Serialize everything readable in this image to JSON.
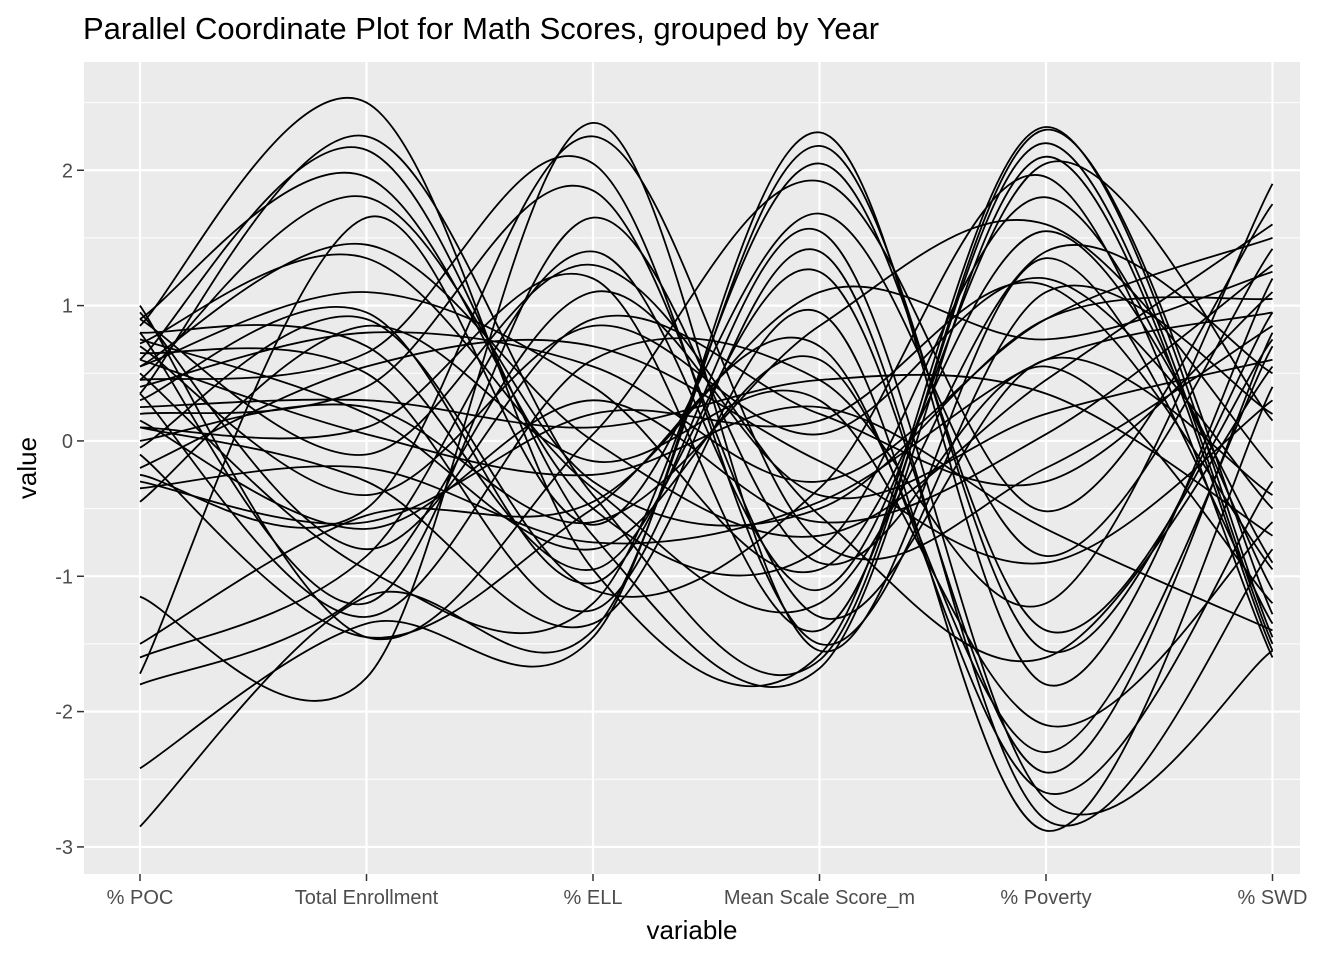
{
  "chart_data": {
    "type": "parallel-coordinates",
    "title": "Parallel Coordinate Plot for Math Scores, grouped by Year",
    "xlabel": "variable",
    "ylabel": "value",
    "variables": [
      "% POC",
      "Total Enrollment",
      "% ELL",
      "Mean Scale Score_m",
      "% Poverty",
      "% SWD"
    ],
    "ylim": [
      -3.2,
      2.8
    ],
    "y_ticks": [
      -3,
      -2,
      -1,
      0,
      1,
      2
    ],
    "y_tick_labels": [
      "-3",
      "-2",
      "-1",
      "0",
      "1",
      "2"
    ],
    "grid": true,
    "panel_color": "#ebebeb",
    "line_color": "#000000",
    "curve": "smoothed",
    "series": [
      {
        "values": [
          1.0,
          -1.45,
          0.05,
          1.92,
          -0.52,
          1.75
        ]
      },
      {
        "values": [
          0.85,
          2.5,
          -0.95,
          -1.58,
          2.32,
          -1.45
        ]
      },
      {
        "values": [
          0.35,
          2.25,
          -0.4,
          -1.62,
          2.3,
          -1.28
        ]
      },
      {
        "values": [
          0.6,
          2.15,
          -0.7,
          -1.68,
          2.1,
          -1.55
        ]
      },
      {
        "values": [
          0.9,
          1.95,
          -0.5,
          -0.8,
          1.8,
          -1.1
        ]
      },
      {
        "values": [
          -1.72,
          1.65,
          -0.62,
          1.68,
          -0.85,
          1.42
        ]
      },
      {
        "values": [
          0.72,
          1.35,
          -0.35,
          -1.2,
          1.4,
          0.5
        ]
      },
      {
        "values": [
          0.55,
          1.1,
          0.4,
          -0.95,
          1.55,
          -0.9
        ]
      },
      {
        "values": [
          -1.15,
          -1.75,
          2.35,
          -1.55,
          1.35,
          -1.35
        ]
      },
      {
        "values": [
          0.45,
          0.65,
          2.05,
          -1.5,
          1.1,
          0.2
        ]
      },
      {
        "values": [
          0.2,
          0.4,
          1.85,
          -1.3,
          0.6,
          -0.4
        ]
      },
      {
        "values": [
          -0.25,
          -0.5,
          2.25,
          -0.75,
          -0.2,
          0.85
        ]
      },
      {
        "values": [
          0.8,
          -1.2,
          1.65,
          -0.9,
          0.55,
          -1.2
        ]
      },
      {
        "values": [
          -1.8,
          -1.1,
          1.1,
          -0.4,
          0.2,
          0.6
        ]
      },
      {
        "values": [
          0.95,
          -0.8,
          0.9,
          0.2,
          -0.3,
          1.1
        ]
      },
      {
        "values": [
          -2.42,
          -1.35,
          -1.45,
          2.28,
          -1.8,
          1.2
        ]
      },
      {
        "values": [
          -2.85,
          -1.15,
          -1.4,
          2.18,
          -1.55,
          0.95
        ]
      },
      {
        "values": [
          0.5,
          -0.95,
          -1.2,
          2.05,
          -1.4,
          0.75
        ]
      },
      {
        "values": [
          0.3,
          0.95,
          -1.05,
          1.55,
          -2.65,
          -1.55
        ]
      },
      {
        "values": [
          0.65,
          0.5,
          -1.25,
          1.4,
          -2.8,
          -0.8
        ]
      },
      {
        "values": [
          0.1,
          -0.3,
          -1.35,
          0.95,
          -2.88,
          0.4
        ]
      },
      {
        "values": [
          -0.1,
          -1.45,
          -0.5,
          0.7,
          -2.6,
          -0.3
        ]
      },
      {
        "values": [
          0.75,
          0.2,
          -0.8,
          0.6,
          -2.3,
          0.7
        ]
      },
      {
        "values": [
          -0.45,
          0.85,
          -0.15,
          0.3,
          -2.1,
          -0.6
        ]
      },
      {
        "values": [
          0.4,
          0.8,
          0.55,
          -0.3,
          0.9,
          1.5
        ]
      },
      {
        "values": [
          0.25,
          0.3,
          0.1,
          0.45,
          0.35,
          -0.7
        ]
      },
      {
        "values": [
          -0.35,
          -0.2,
          -0.75,
          -0.45,
          0.6,
          0.95
        ]
      },
      {
        "values": [
          0.15,
          -0.65,
          0.3,
          -0.6,
          0.05,
          1.3
        ]
      },
      {
        "values": [
          0.6,
          0.05,
          -0.25,
          0.25,
          -0.65,
          -1.4
        ]
      },
      {
        "values": [
          -0.2,
          0.55,
          0.7,
          -0.15,
          -0.9,
          0.3
        ]
      },
      {
        "values": [
          0.7,
          -0.4,
          0.85,
          0.05,
          1.2,
          -0.5
        ]
      },
      {
        "values": [
          -1.5,
          -0.55,
          -0.45,
          1.1,
          0.75,
          1.25
        ]
      },
      {
        "values": [
          0.0,
          0.25,
          -0.6,
          0.85,
          1.6,
          -0.2
        ]
      },
      {
        "values": [
          0.9,
          -0.1,
          1.3,
          -0.55,
          -1.6,
          0.55
        ]
      },
      {
        "values": [
          -0.05,
          0.9,
          -1.1,
          -0.35,
          1.95,
          -1.6
        ]
      },
      {
        "values": [
          0.55,
          1.45,
          0.0,
          -0.7,
          0.45,
          1.6
        ]
      },
      {
        "values": [
          -1.6,
          -0.85,
          1.4,
          -1.1,
          2.05,
          0.15
        ]
      },
      {
        "values": [
          0.35,
          -1.3,
          0.6,
          0.45,
          -1.2,
          1.9
        ]
      },
      {
        "values": [
          0.8,
          0.7,
          -0.95,
          1.25,
          -2.45,
          0.8
        ]
      },
      {
        "values": [
          -0.3,
          -0.6,
          0.2,
          0.15,
          1.15,
          -0.95
        ]
      },
      {
        "values": [
          0.45,
          1.8,
          -0.3,
          -0.5,
          0.9,
          1.05
        ]
      },
      {
        "values": [
          0.1,
          0.1,
          1.2,
          -1.4,
          2.2,
          -1.5
        ]
      }
    ]
  }
}
